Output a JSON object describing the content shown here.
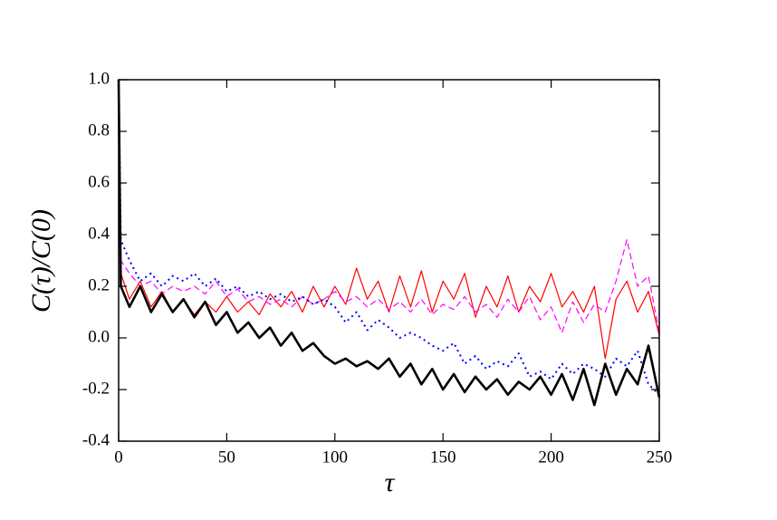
{
  "chart_data": {
    "type": "line",
    "x_label": "τ",
    "y_label": "C(τ)/C(0)",
    "x": [
      0,
      1,
      5,
      10,
      15,
      20,
      25,
      30,
      35,
      40,
      45,
      50,
      55,
      60,
      65,
      70,
      75,
      80,
      85,
      90,
      95,
      100,
      105,
      110,
      115,
      120,
      125,
      130,
      135,
      140,
      145,
      150,
      155,
      160,
      165,
      170,
      175,
      180,
      185,
      190,
      195,
      200,
      205,
      210,
      215,
      220,
      225,
      230,
      235,
      240,
      245,
      250
    ],
    "series": [
      {
        "color": "#ff0000",
        "linestyle": "solid",
        "linewidth": 1.2,
        "values": [
          1.0,
          0.25,
          0.15,
          0.22,
          0.12,
          0.18,
          0.1,
          0.15,
          0.09,
          0.14,
          0.1,
          0.16,
          0.1,
          0.14,
          0.09,
          0.17,
          0.12,
          0.18,
          0.1,
          0.2,
          0.12,
          0.2,
          0.13,
          0.27,
          0.15,
          0.22,
          0.1,
          0.24,
          0.12,
          0.26,
          0.1,
          0.22,
          0.15,
          0.25,
          0.08,
          0.2,
          0.12,
          0.24,
          0.1,
          0.2,
          0.14,
          0.25,
          0.12,
          0.18,
          0.1,
          0.2,
          -0.08,
          0.15,
          0.22,
          0.1,
          0.18,
          0.01
        ]
      },
      {
        "color": "#ff00ff",
        "linestyle": "dashed",
        "linewidth": 1.2,
        "values": [
          1.0,
          0.3,
          0.25,
          0.2,
          0.22,
          0.17,
          0.2,
          0.18,
          0.2,
          0.17,
          0.22,
          0.16,
          0.19,
          0.14,
          0.16,
          0.13,
          0.15,
          0.12,
          0.16,
          0.13,
          0.15,
          0.18,
          0.14,
          0.16,
          0.12,
          0.15,
          0.11,
          0.14,
          0.1,
          0.15,
          0.09,
          0.13,
          0.11,
          0.16,
          0.1,
          0.13,
          0.08,
          0.15,
          0.1,
          0.16,
          0.07,
          0.12,
          0.02,
          0.14,
          0.06,
          0.13,
          0.1,
          0.22,
          0.38,
          0.2,
          0.24,
          0.02
        ]
      },
      {
        "color": "#0000ff",
        "linestyle": "dotted",
        "linewidth": 2,
        "values": [
          1.0,
          0.38,
          0.3,
          0.22,
          0.25,
          0.2,
          0.24,
          0.22,
          0.25,
          0.2,
          0.23,
          0.18,
          0.2,
          0.16,
          0.18,
          0.15,
          0.17,
          0.14,
          0.16,
          0.13,
          0.15,
          0.12,
          0.06,
          0.1,
          0.03,
          0.07,
          0.04,
          0.0,
          0.02,
          0.0,
          -0.03,
          -0.05,
          -0.02,
          -0.1,
          -0.07,
          -0.12,
          -0.09,
          -0.11,
          -0.06,
          -0.15,
          -0.13,
          -0.16,
          -0.1,
          -0.14,
          -0.1,
          -0.12,
          -0.15,
          -0.08,
          -0.11,
          -0.05,
          -0.18,
          -0.22
        ]
      },
      {
        "color": "#000000",
        "linestyle": "solid",
        "linewidth": 2.6,
        "values": [
          1.0,
          0.2,
          0.12,
          0.2,
          0.1,
          0.17,
          0.1,
          0.15,
          0.08,
          0.14,
          0.05,
          0.1,
          0.02,
          0.06,
          0.0,
          0.04,
          -0.03,
          0.02,
          -0.05,
          -0.02,
          -0.07,
          -0.1,
          -0.08,
          -0.11,
          -0.09,
          -0.12,
          -0.08,
          -0.15,
          -0.1,
          -0.18,
          -0.12,
          -0.2,
          -0.14,
          -0.21,
          -0.15,
          -0.2,
          -0.16,
          -0.22,
          -0.17,
          -0.2,
          -0.15,
          -0.22,
          -0.14,
          -0.24,
          -0.12,
          -0.26,
          -0.1,
          -0.22,
          -0.12,
          -0.18,
          -0.03,
          -0.23
        ]
      }
    ],
    "xlim": [
      0,
      250
    ],
    "xticks": [
      0,
      50,
      100,
      150,
      200,
      250
    ],
    "ylim": [
      -0.4,
      1.0
    ],
    "yticks": [
      {
        "value": -0.4,
        "label": "-0.4"
      },
      {
        "value": -0.2,
        "label": "-0.2"
      },
      {
        "value": 0,
        "label": "0.0"
      },
      {
        "value": 0.2,
        "label": "0.2"
      },
      {
        "value": 0.4,
        "label": "0.4"
      },
      {
        "value": 0.6,
        "label": "0.6"
      },
      {
        "value": 0.8,
        "label": "0.8"
      },
      {
        "value": 1.0,
        "label": "1.0"
      }
    ],
    "grid": false
  }
}
